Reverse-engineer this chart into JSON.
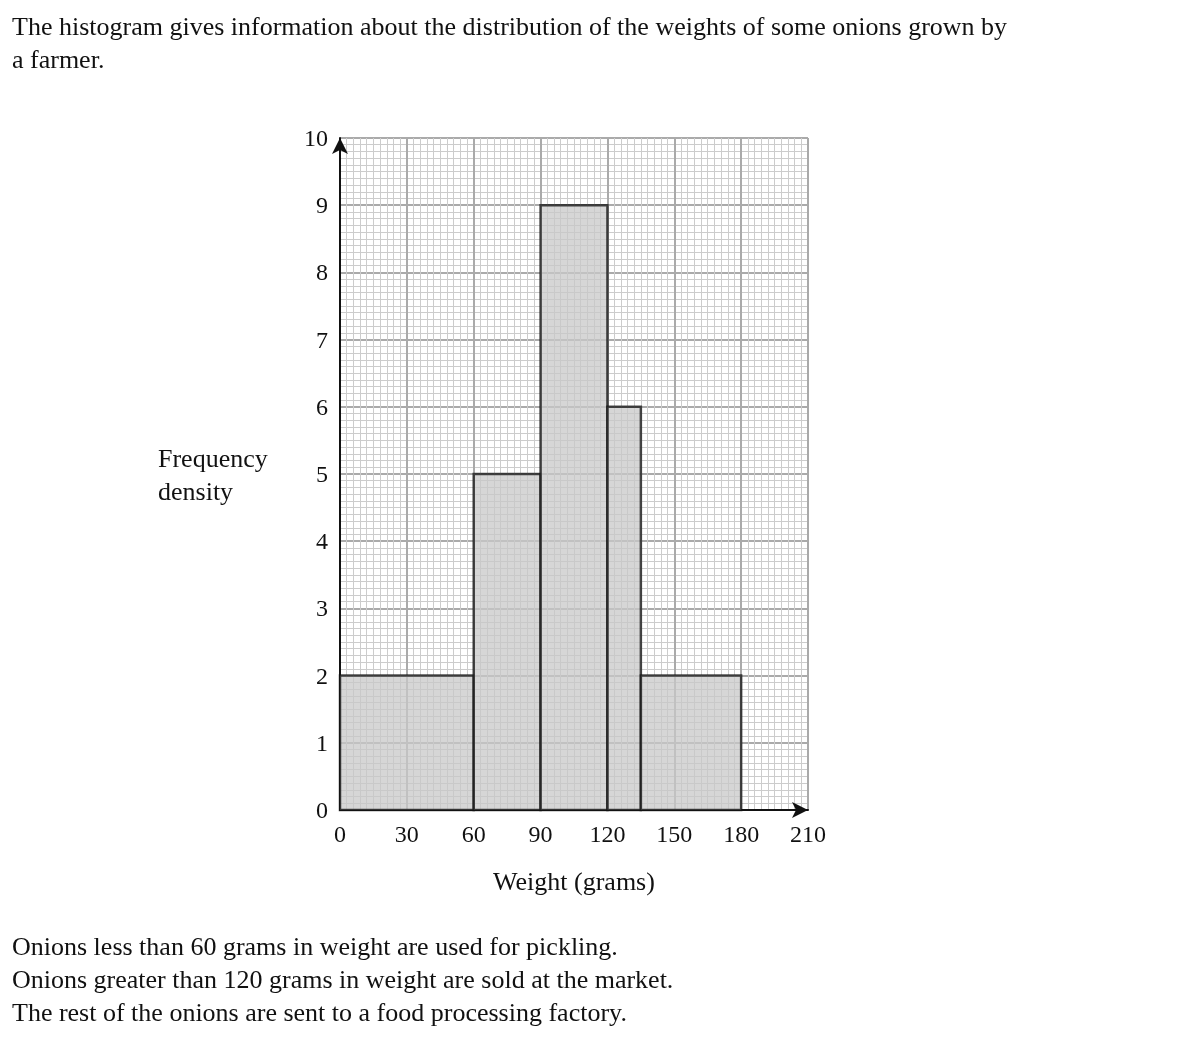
{
  "chart_data": {
    "type": "histogram",
    "title": "The histogram gives information about the distribution of the weights of some onions grown by a farmer.",
    "xlabel": "Weight (grams)",
    "ylabel": "Frequency density",
    "bins": [
      0,
      60,
      90,
      120,
      135,
      180
    ],
    "values": [
      2,
      5,
      9,
      6,
      2
    ],
    "color": "#c8c8c8",
    "xlim": [
      0,
      210
    ],
    "xticks": [
      0,
      30,
      60,
      90,
      120,
      150,
      180,
      210
    ],
    "ylim": [
      0,
      10
    ],
    "yticks": [
      0,
      1,
      2,
      3,
      4,
      5,
      6,
      7,
      8,
      9,
      10
    ],
    "grid": true,
    "annotations": [
      "Onions less than 60 grams in weight are used for pickling.",
      "Onions greater than 120 grams in weight are sold at the market.",
      "The rest of the onions are sent to a food processing factory."
    ]
  }
}
